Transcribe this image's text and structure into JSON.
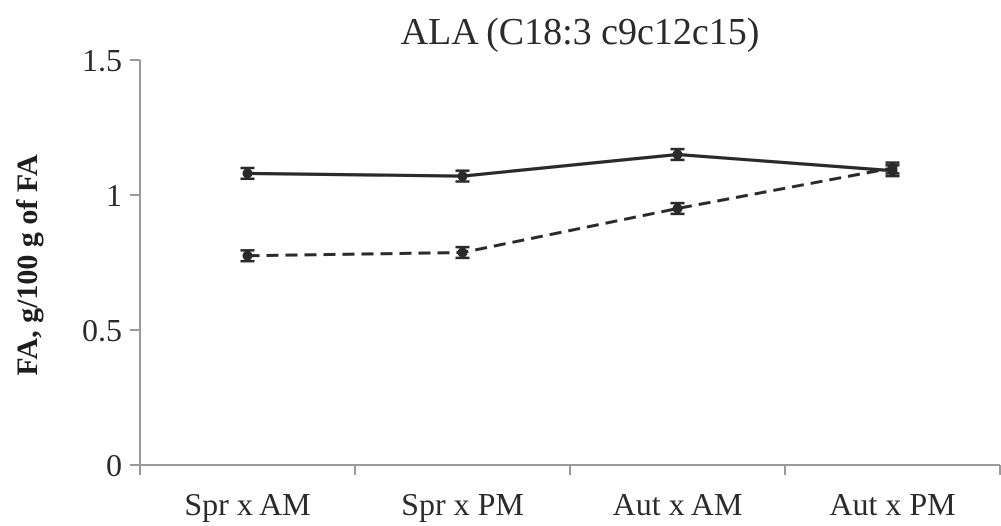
{
  "chart_data": {
    "type": "line",
    "title": "ALA (C18:3 c9c12c15)",
    "xlabel": "",
    "ylabel": "FA, g/100 g of FA",
    "ylim": [
      0,
      1.5
    ],
    "yticks": [
      "0",
      "0.5",
      "1",
      "1.5"
    ],
    "categories": [
      "Spr x AM",
      "Spr x PM",
      "Aut x AM",
      "Aut x PM"
    ],
    "grid": false,
    "legend": "none",
    "series": [
      {
        "style": "solid",
        "values": [
          1.08,
          1.07,
          1.15,
          1.09
        ],
        "errors": [
          0.02,
          0.02,
          0.02,
          0.02
        ]
      },
      {
        "style": "dashed",
        "values": [
          0.775,
          0.787,
          0.95,
          1.1
        ],
        "errors": [
          0.02,
          0.02,
          0.02,
          0.02
        ]
      }
    ],
    "colors": {
      "line": "#2a2a2a",
      "axis": "#9a9a9a",
      "text": "#2b2b2b"
    }
  }
}
